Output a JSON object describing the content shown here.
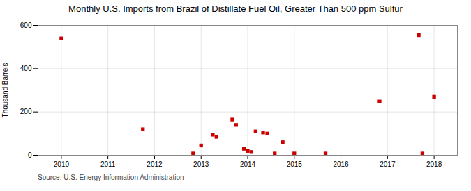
{
  "chart_data": {
    "type": "scatter",
    "title": "Monthly U.S. Imports from Brazil of Distillate Fuel Oil, Greater Than 500 ppm Sulfur",
    "ylabel": "Thousand Barrels",
    "annotations": [
      "Source: U.S. Energy Information Administration"
    ],
    "x": [
      2010.0,
      2011.75,
      2012.83,
      2013.0,
      2013.25,
      2013.33,
      2013.67,
      2013.75,
      2013.92,
      2014.0,
      2014.08,
      2014.17,
      2014.33,
      2014.42,
      2014.58,
      2014.75,
      2015.0,
      2015.67,
      2016.83,
      2017.67,
      2017.75,
      2018.0
    ],
    "values": [
      540,
      120,
      8,
      45,
      95,
      85,
      165,
      140,
      30,
      20,
      15,
      110,
      105,
      100,
      8,
      60,
      8,
      8,
      248,
      555,
      8,
      270
    ],
    "color": "#CC0000",
    "marker": "square",
    "xlim": [
      2009.5,
      2018.5
    ],
    "xticks": [
      2010,
      2011,
      2012,
      2013,
      2014,
      2015,
      2016,
      2017,
      2018
    ],
    "ylim": [
      0,
      600
    ],
    "yticks": [
      0,
      200,
      400,
      600
    ],
    "grid": true
  }
}
